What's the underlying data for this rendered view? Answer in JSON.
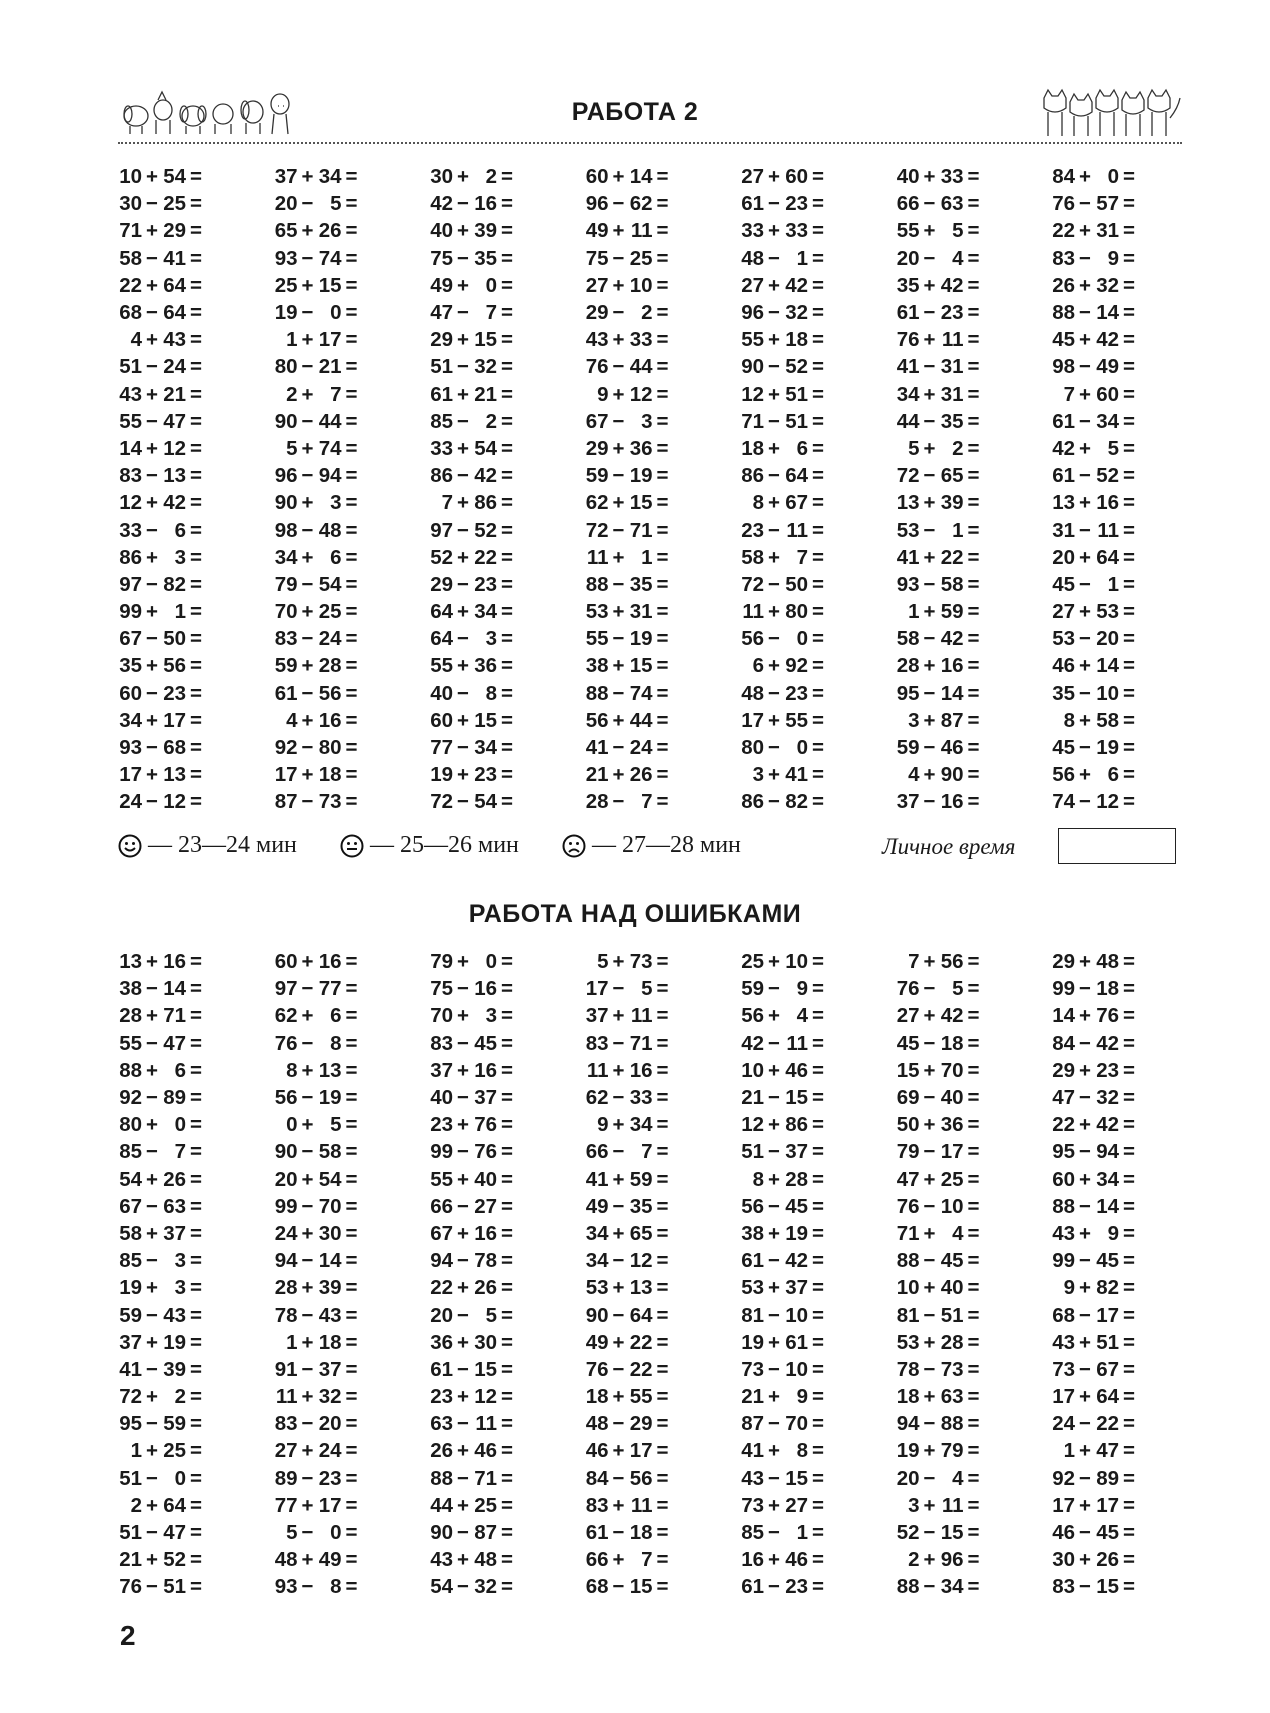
{
  "header": {
    "title": "РАБОТА 2"
  },
  "section1": {
    "rows": [
      [
        "10 + 54 =",
        "37 + 34 =",
        "30 + 2 =",
        "60 + 14 =",
        "27 + 60 =",
        "40 + 33 =",
        "84 + 0 ="
      ],
      [
        "30 − 25 =",
        "20 − 5 =",
        "42 − 16 =",
        "96 − 62 =",
        "61 − 23 =",
        "66 − 63 =",
        "76 − 57 ="
      ],
      [
        "71 + 29 =",
        "65 + 26 =",
        "40 + 39 =",
        "49 + 11 =",
        "33 + 33 =",
        "55 + 5 =",
        "22 + 31 ="
      ],
      [
        "58 − 41 =",
        "93 − 74 =",
        "75 − 35 =",
        "75 − 25 =",
        "48 − 1 =",
        "20 − 4 =",
        "83 − 9 ="
      ],
      [
        "22 + 64 =",
        "25 + 15 =",
        "49 + 0 =",
        "27 + 10 =",
        "27 + 42 =",
        "35 + 42 =",
        "26 + 32 ="
      ],
      [
        "68 − 64 =",
        "19 − 0 =",
        "47 − 7 =",
        "29 − 2 =",
        "96 − 32 =",
        "61 − 23 =",
        "88 − 14 ="
      ],
      [
        "4 + 43 =",
        "1 + 17 =",
        "29 + 15 =",
        "43 + 33 =",
        "55 + 18 =",
        "76 + 11 =",
        "45 + 42 ="
      ],
      [
        "51 − 24 =",
        "80 − 21 =",
        "51 − 32 =",
        "76 − 44 =",
        "90 − 52 =",
        "41 − 31 =",
        "98 − 49 ="
      ],
      [
        "43 + 21 =",
        "2 + 7 =",
        "61 + 21 =",
        "9 + 12 =",
        "12 + 51 =",
        "34 + 31 =",
        "7 + 60 ="
      ],
      [
        "55 − 47 =",
        "90 − 44 =",
        "85 − 2 =",
        "67 − 3 =",
        "71 − 51 =",
        "44 − 35 =",
        "61 − 34 ="
      ],
      [
        "14 + 12 =",
        "5 + 74 =",
        "33 + 54 =",
        "29 + 36 =",
        "18 + 6 =",
        "5 + 2 =",
        "42 + 5 ="
      ],
      [
        "83 − 13 =",
        "96 − 94 =",
        "86 − 42 =",
        "59 − 19 =",
        "86 − 64 =",
        "72 − 65 =",
        "61 − 52 ="
      ],
      [
        "12 + 42 =",
        "90 + 3 =",
        "7 + 86 =",
        "62 + 15 =",
        "8 + 67 =",
        "13 + 39 =",
        "13 + 16 ="
      ],
      [
        "33 − 6 =",
        "98 − 48 =",
        "97 − 52 =",
        "72 − 71 =",
        "23 − 11 =",
        "53 − 1 =",
        "31 − 11 ="
      ],
      [
        "86 + 3 =",
        "34 + 6 =",
        "52 + 22 =",
        "11 + 1 =",
        "58 + 7 =",
        "41 + 22 =",
        "20 + 64 ="
      ],
      [
        "97 − 82 =",
        "79 − 54 =",
        "29 − 23 =",
        "88 − 35 =",
        "72 − 50 =",
        "93 − 58 =",
        "45 − 1 ="
      ],
      [
        "99 + 1 =",
        "70 + 25 =",
        "64 + 34 =",
        "53 + 31 =",
        "11 + 80 =",
        "1 + 59 =",
        "27 + 53 ="
      ],
      [
        "67 − 50 =",
        "83 − 24 =",
        "64 − 3 =",
        "55 − 19 =",
        "56 − 0 =",
        "58 − 42 =",
        "53 − 20 ="
      ],
      [
        "35 + 56 =",
        "59 + 28 =",
        "55 + 36 =",
        "38 + 15 =",
        "6 + 92 =",
        "28 + 16 =",
        "46 + 14 ="
      ],
      [
        "60 − 23 =",
        "61 − 56 =",
        "40 − 8 =",
        "88 − 74 =",
        "48 − 23 =",
        "95 − 14 =",
        "35 − 10 ="
      ],
      [
        "34 + 17 =",
        "4 + 16 =",
        "60 + 15 =",
        "56 + 44 =",
        "17 + 55 =",
        "3 + 87 =",
        "8 + 58 ="
      ],
      [
        "93 − 68 =",
        "92 − 80 =",
        "77 − 34 =",
        "41 − 24 =",
        "80 − 0 =",
        "59 − 46 =",
        "45 − 19 ="
      ],
      [
        "17 + 13 =",
        "17 + 18 =",
        "19 + 23 =",
        "21 + 26 =",
        "3 + 41 =",
        "4 + 90 =",
        "56 + 6 ="
      ],
      [
        "24 − 12 =",
        "87 − 73 =",
        "72 − 54 =",
        "28 − 7 =",
        "86 − 82 =",
        "37 − 16 =",
        "74 − 12 ="
      ]
    ]
  },
  "legend": {
    "items": [
      {
        "icon": "smiling-face-icon",
        "text": "— 23—24 мин"
      },
      {
        "icon": "neutral-face-icon",
        "text": "— 25—26 мин"
      },
      {
        "icon": "sad-face-icon",
        "text": "— 27—28 мин"
      }
    ],
    "personal_time_label": "Личное время",
    "personal_time_value": ""
  },
  "section2": {
    "title": "РАБОТА НАД ОШИБКАМИ",
    "rows": [
      [
        "13 + 16 =",
        "60 + 16 =",
        "79 + 0 =",
        "5 + 73 =",
        "25 + 10 =",
        "7 + 56 =",
        "29 + 48 ="
      ],
      [
        "38 − 14 =",
        "97 − 77 =",
        "75 − 16 =",
        "17 − 5 =",
        "59 − 9 =",
        "76 − 5 =",
        "99 − 18 ="
      ],
      [
        "28 + 71 =",
        "62 + 6 =",
        "70 + 3 =",
        "37 + 11 =",
        "56 + 4 =",
        "27 + 42 =",
        "14 + 76 ="
      ],
      [
        "55 − 47 =",
        "76 − 8 =",
        "83 − 45 =",
        "83 − 71 =",
        "42 − 11 =",
        "45 − 18 =",
        "84 − 42 ="
      ],
      [
        "88 + 6 =",
        "8 + 13 =",
        "37 + 16 =",
        "11 + 16 =",
        "10 + 46 =",
        "15 + 70 =",
        "29 + 23 ="
      ],
      [
        "92 − 89 =",
        "56 − 19 =",
        "40 − 37 =",
        "62 − 33 =",
        "21 − 15 =",
        "69 − 40 =",
        "47 − 32 ="
      ],
      [
        "80 + 0 =",
        "0 + 5 =",
        "23 + 76 =",
        "9 + 34 =",
        "12 + 86 =",
        "50 + 36 =",
        "22 + 42 ="
      ],
      [
        "85 − 7 =",
        "90 − 58 =",
        "99 − 76 =",
        "66 − 7 =",
        "51 − 37 =",
        "79 − 17 =",
        "95 − 94 ="
      ],
      [
        "54 + 26 =",
        "20 + 54 =",
        "55 + 40 =",
        "41 + 59 =",
        "8 + 28 =",
        "47 + 25 =",
        "60 + 34 ="
      ],
      [
        "67 − 63 =",
        "99 − 70 =",
        "66 − 27 =",
        "49 − 35 =",
        "56 − 45 =",
        "76 − 10 =",
        "88 − 14 ="
      ],
      [
        "58 + 37 =",
        "24 + 30 =",
        "67 + 16 =",
        "34 + 65 =",
        "38 + 19 =",
        "71 + 4 =",
        "43 + 9 ="
      ],
      [
        "85 − 3 =",
        "94 − 14 =",
        "94 − 78 =",
        "34 − 12 =",
        "61 − 42 =",
        "88 − 45 =",
        "99 − 45 ="
      ],
      [
        "19 + 3 =",
        "28 + 39 =",
        "22 + 26 =",
        "53 + 13 =",
        "53 + 37 =",
        "10 + 40 =",
        "9 + 82 ="
      ],
      [
        "59 − 43 =",
        "78 − 43 =",
        "20 − 5 =",
        "90 − 64 =",
        "81 − 10 =",
        "81 − 51 =",
        "68 − 17 ="
      ],
      [
        "37 + 19 =",
        "1 + 18 =",
        "36 + 30 =",
        "49 + 22 =",
        "19 + 61 =",
        "53 + 28 =",
        "43 + 51 ="
      ],
      [
        "41 − 39 =",
        "91 − 37 =",
        "61 − 15 =",
        "76 − 22 =",
        "73 − 10 =",
        "78 − 73 =",
        "73 − 67 ="
      ],
      [
        "72 + 2 =",
        "11 + 32 =",
        "23 + 12 =",
        "18 + 55 =",
        "21 + 9 =",
        "18 + 63 =",
        "17 + 64 ="
      ],
      [
        "95 − 59 =",
        "83 − 20 =",
        "63 − 11 =",
        "48 − 29 =",
        "87 − 70 =",
        "94 − 88 =",
        "24 − 22 ="
      ],
      [
        "1 + 25 =",
        "27 + 24 =",
        "26 + 46 =",
        "46 + 17 =",
        "41 + 8 =",
        "19 + 79 =",
        "1 + 47 ="
      ],
      [
        "51 − 0 =",
        "89 − 23 =",
        "88 − 71 =",
        "84 − 56 =",
        "43 − 15 =",
        "20 − 4 =",
        "92 − 89 ="
      ],
      [
        "2 + 64 =",
        "77 + 17 =",
        "44 + 25 =",
        "83 + 11 =",
        "73 + 27 =",
        "3 + 11 =",
        "17 + 17 ="
      ],
      [
        "51 − 47 =",
        "5 − 0 =",
        "90 − 87 =",
        "61 − 18 =",
        "85 − 1 =",
        "52 − 15 =",
        "46 − 45 ="
      ],
      [
        "21 + 52 =",
        "48 + 49 =",
        "43 + 48 =",
        "66 + 7 =",
        "16 + 46 =",
        "2 + 96 =",
        "30 + 26 ="
      ],
      [
        "76 − 51 =",
        "93 − 8 =",
        "54 − 32 =",
        "68 − 15 =",
        "61 − 23 =",
        "88 − 34 =",
        "83 − 15 ="
      ]
    ]
  },
  "footer": {
    "page_number": "2"
  }
}
